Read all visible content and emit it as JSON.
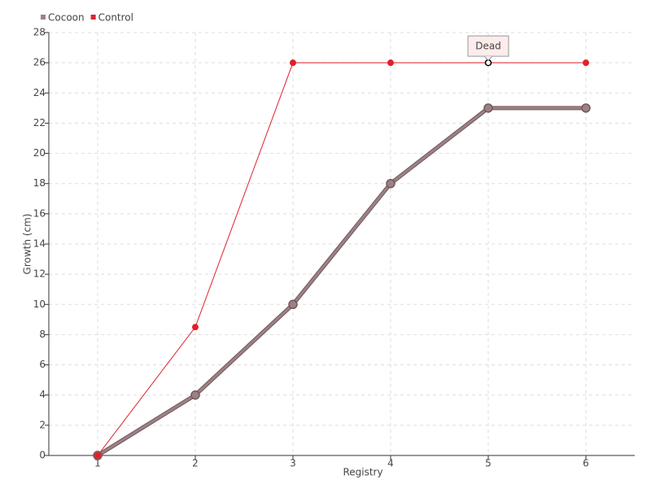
{
  "chart_data": {
    "type": "line",
    "x_label": "Registry",
    "y_label": "Growth (cm)",
    "x": [
      1,
      2,
      3,
      4,
      5,
      6
    ],
    "series": [
      {
        "name": "Cocoon",
        "color": "#9e8084",
        "values": [
          0,
          4,
          10,
          18,
          23,
          23
        ]
      },
      {
        "name": "Control",
        "color": "#e0202a",
        "values": [
          0,
          8.5,
          26,
          26,
          26,
          26
        ]
      }
    ],
    "xlim": [
      0.5,
      6.5
    ],
    "xticks": [
      1,
      2,
      3,
      4,
      5,
      6
    ],
    "ylim": [
      0,
      28
    ],
    "yticks": [
      0,
      2,
      4,
      6,
      8,
      10,
      12,
      14,
      16,
      18,
      20,
      22,
      24,
      26,
      28
    ],
    "grid": true,
    "legend": "top-left",
    "annotations": [
      {
        "text": "Dead",
        "x": 5,
        "y": 26
      }
    ]
  }
}
